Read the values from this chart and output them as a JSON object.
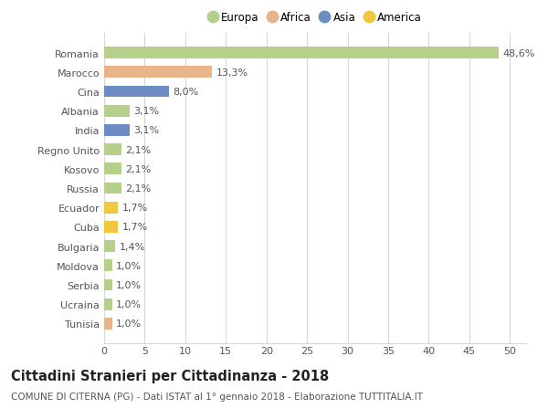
{
  "countries": [
    "Tunisia",
    "Ucraina",
    "Serbia",
    "Moldova",
    "Bulgaria",
    "Cuba",
    "Ecuador",
    "Russia",
    "Kosovo",
    "Regno Unito",
    "India",
    "Albania",
    "Cina",
    "Marocco",
    "Romania"
  ],
  "values": [
    1.0,
    1.0,
    1.0,
    1.0,
    1.4,
    1.7,
    1.7,
    2.1,
    2.1,
    2.1,
    3.1,
    3.1,
    8.0,
    13.3,
    48.6
  ],
  "labels": [
    "1,0%",
    "1,0%",
    "1,0%",
    "1,0%",
    "1,4%",
    "1,7%",
    "1,7%",
    "2,1%",
    "2,1%",
    "2,1%",
    "3,1%",
    "3,1%",
    "8,0%",
    "13,3%",
    "48,6%"
  ],
  "continent": [
    "Africa",
    "Europa",
    "Europa",
    "Europa",
    "Europa",
    "America",
    "America",
    "Europa",
    "Europa",
    "Europa",
    "Asia",
    "Europa",
    "Asia",
    "Africa",
    "Europa"
  ],
  "colors": {
    "Europa": "#b5d08a",
    "Africa": "#e8b48a",
    "Asia": "#6b8dc4",
    "America": "#f0c840"
  },
  "legend_order": [
    "Europa",
    "Africa",
    "Asia",
    "America"
  ],
  "title": "Cittadini Stranieri per Cittadinanza - 2018",
  "subtitle": "COMUNE DI CITERNA (PG) - Dati ISTAT al 1° gennaio 2018 - Elaborazione TUTTITALIA.IT",
  "xlim": [
    0,
    52
  ],
  "xticks": [
    0,
    5,
    10,
    15,
    20,
    25,
    30,
    35,
    40,
    45,
    50
  ],
  "background_color": "#ffffff",
  "grid_color": "#d8d8d8",
  "bar_height": 0.6,
  "label_fontsize": 8,
  "tick_fontsize": 8,
  "title_fontsize": 10.5,
  "subtitle_fontsize": 7.5
}
